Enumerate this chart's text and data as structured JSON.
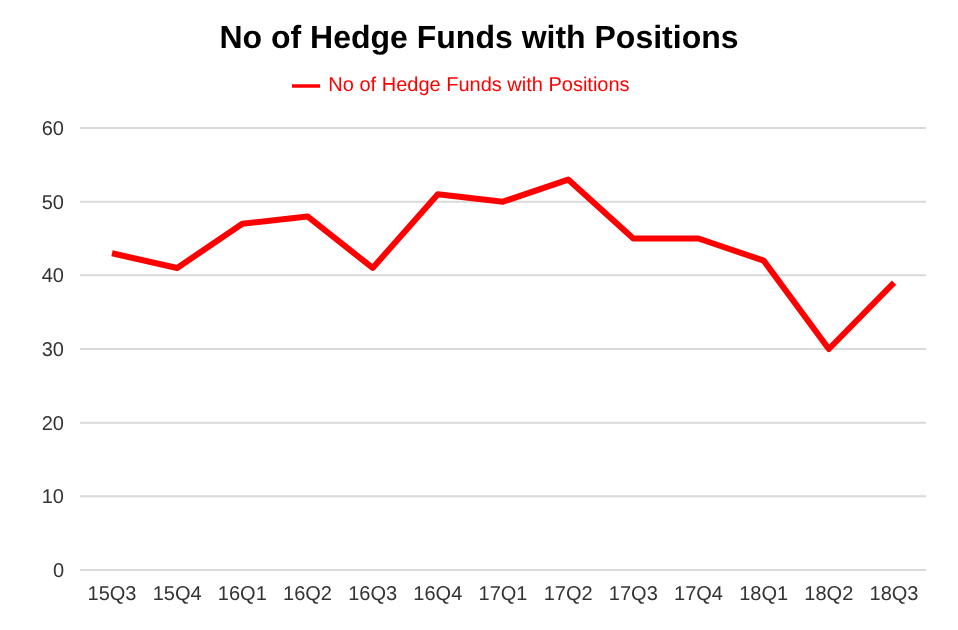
{
  "chart_data": {
    "type": "line",
    "title": "No of Hedge Funds with Positions",
    "categories": [
      "15Q3",
      "15Q4",
      "16Q1",
      "16Q2",
      "16Q3",
      "16Q4",
      "17Q1",
      "17Q2",
      "17Q3",
      "17Q4",
      "18Q1",
      "18Q2",
      "18Q3"
    ],
    "series": [
      {
        "name": "No of Hedge Funds with Positions",
        "color": "#ff0000",
        "values": [
          43,
          41,
          47,
          48,
          41,
          51,
          50,
          53,
          45,
          45,
          42,
          30,
          39
        ]
      }
    ],
    "ylim": [
      0,
      60
    ],
    "yticks": [
      0,
      10,
      20,
      30,
      40,
      50,
      60
    ],
    "grid": "y",
    "legend": "top",
    "marker": "none",
    "line_style": "solid"
  }
}
